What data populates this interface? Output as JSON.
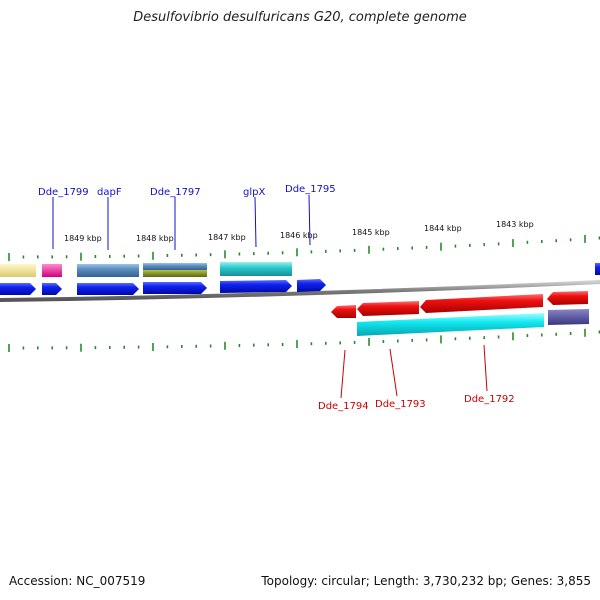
{
  "title": "Desulfovibrio desulfuricans G20, complete genome",
  "footer": {
    "accession": "Accession: NC_007519",
    "summary": "Topology: circular; Length: 3,730,232 bp; Genes: 3,855"
  },
  "colors": {
    "backbone": "#7d7d7d",
    "tick": "#2a8a2a",
    "forward_gene": "#0a14e0",
    "reverse_gene": "#e01010",
    "top_label": "#1111cc",
    "bottom_label": "#cc0000"
  },
  "scale_labels": [
    "1849 kbp",
    "1848 kbp",
    "1847 kbp",
    "1846 kbp",
    "1845 kbp",
    "1844 kbp",
    "1843 kbp"
  ],
  "forward_labels": [
    "Dde_1799",
    "dapF",
    "Dde_1797",
    "glpX",
    "Dde_1795"
  ],
  "reverse_labels": [
    "Dde_1794",
    "Dde_1793",
    "Dde_1792"
  ]
}
